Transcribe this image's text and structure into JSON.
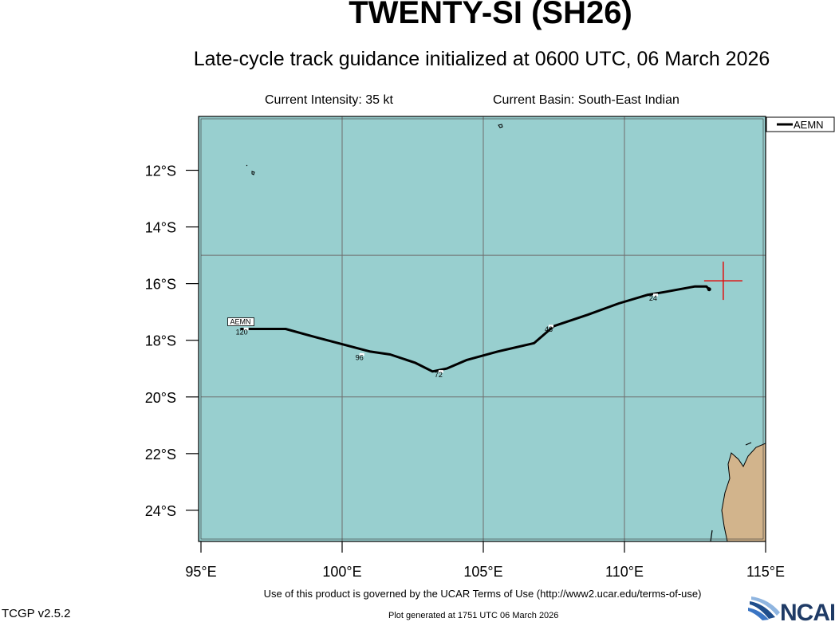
{
  "header": {
    "title": "TWENTY-SI (SH26)",
    "subtitle": "Late-cycle track guidance initialized at 0600 UTC, 06 March 2026",
    "intensity": "Current Intensity: 35 kt",
    "basin": "Current Basin: South-East Indian"
  },
  "footer": {
    "terms": "Use of this product is governed by the UCAR Terms of Use (http://www2.ucar.edu/terms-of-use)",
    "version": "TCGP v2.5.2",
    "generated": "Plot generated at 1751 UTC   06 March 2026",
    "logo_text": "NCAR"
  },
  "colors": {
    "ocean": "#98cfcf",
    "land": "#d2b48c",
    "grid": "#6e6e6e",
    "track": "#000000",
    "current_position_marker": "#e01010"
  },
  "chart_data": {
    "type": "line",
    "title": "TWENTY-SI (SH26)",
    "xlim": [
      95,
      115
    ],
    "ylim": [
      -25.1,
      -10.1
    ],
    "x_ticks": [
      95,
      100,
      105,
      110,
      115
    ],
    "x_tick_labels": [
      "95°E",
      "100°E",
      "105°E",
      "110°E",
      "115°E"
    ],
    "y_ticks": [
      -12,
      -14,
      -16,
      -18,
      -20,
      -22,
      -24
    ],
    "y_tick_labels": [
      "12°S",
      "14°S",
      "16°S",
      "18°S",
      "20°S",
      "22°S",
      "24°S"
    ],
    "grid_lon": [
      100,
      105,
      110
    ],
    "grid_lat": [
      -15,
      -20
    ],
    "legend": {
      "position": "top-right",
      "entries": [
        "AEMN"
      ]
    },
    "current_position": {
      "lon": 113.5,
      "lat": -15.9
    },
    "series": [
      {
        "name": "AEMN",
        "points": [
          {
            "lon": 113.0,
            "lat": -16.2
          },
          {
            "lon": 112.9,
            "lat": -16.1
          },
          {
            "lon": 112.5,
            "lat": -16.1
          },
          {
            "lon": 111.4,
            "lat": -16.3
          },
          {
            "lon": 110.8,
            "lat": -16.4
          },
          {
            "lon": 109.8,
            "lat": -16.7
          },
          {
            "lon": 108.7,
            "lat": -17.1
          },
          {
            "lon": 107.5,
            "lat": -17.5
          },
          {
            "lon": 106.8,
            "lat": -18.1
          },
          {
            "lon": 105.5,
            "lat": -18.4
          },
          {
            "lon": 104.4,
            "lat": -18.7
          },
          {
            "lon": 103.7,
            "lat": -19.0
          },
          {
            "lon": 103.2,
            "lat": -19.1
          },
          {
            "lon": 102.6,
            "lat": -18.8
          },
          {
            "lon": 101.7,
            "lat": -18.5
          },
          {
            "lon": 101.0,
            "lat": -18.4
          },
          {
            "lon": 99.1,
            "lat": -17.9
          },
          {
            "lon": 98.0,
            "lat": -17.6
          },
          {
            "lon": 97.0,
            "lat": -17.6
          },
          {
            "lon": 96.4,
            "lat": -17.6
          }
        ],
        "hour_labels": [
          {
            "label": "24",
            "lon": 111.1,
            "lat": -16.4
          },
          {
            "label": "48",
            "lon": 107.4,
            "lat": -17.5
          },
          {
            "label": "72",
            "lon": 103.5,
            "lat": -19.1
          },
          {
            "label": "96",
            "lon": 100.7,
            "lat": -18.5
          },
          {
            "label": "120",
            "lon": 96.6,
            "lat": -17.6
          }
        ],
        "end_label": "AEMN"
      }
    ]
  }
}
